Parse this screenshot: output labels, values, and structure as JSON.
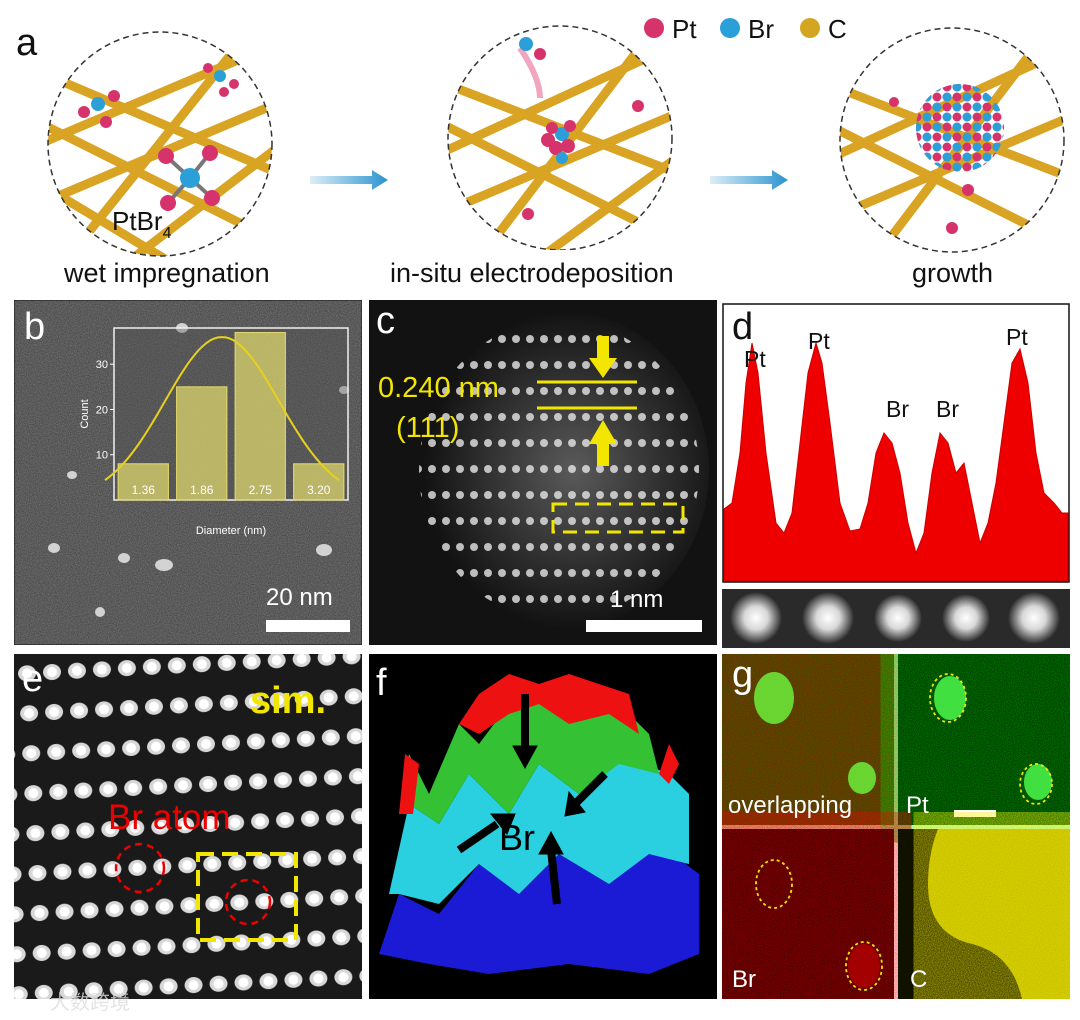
{
  "panel_a": {
    "letter": "a",
    "legend": [
      {
        "label": "Pt",
        "color": "#d6336c"
      },
      {
        "label": "Br",
        "color": "#2b9fd8"
      },
      {
        "label": "C",
        "color": "#d4a521"
      }
    ],
    "stages": [
      "wet impregnation",
      "in-situ electrodeposition",
      "growth"
    ],
    "precursor_label": "PtBr",
    "precursor_subscript": "4"
  },
  "panel_b": {
    "letter": "b",
    "scale_bar": "20 nm",
    "inset_chart": {
      "type": "bar",
      "xlabel": "Diameter (nm)",
      "ylabel": "Count",
      "ylim": [
        0,
        38
      ],
      "yticks": [
        "10",
        "20",
        "30"
      ],
      "categories": [
        "1.36",
        "1.86",
        "2.75",
        "3.20"
      ],
      "values": [
        8,
        25,
        37,
        8
      ],
      "fit": "gaussian"
    }
  },
  "panel_c": {
    "letter": "c",
    "spacing": "0.240 nm",
    "plane": "(111)",
    "scale_bar": "1 nm"
  },
  "panel_d": {
    "letter": "d",
    "peaks": [
      "Pt",
      "Pt",
      "Br",
      "Br",
      "Pt"
    ]
  },
  "panel_e": {
    "letter": "e",
    "sim_label": "sim.",
    "atom_label": "Br atom"
  },
  "panel_f": {
    "letter": "f",
    "label": "Br"
  },
  "panel_g": {
    "letter": "g",
    "maps": [
      "overlapping",
      "Pt",
      "Br",
      "C"
    ]
  },
  "watermark": "大数跨境"
}
